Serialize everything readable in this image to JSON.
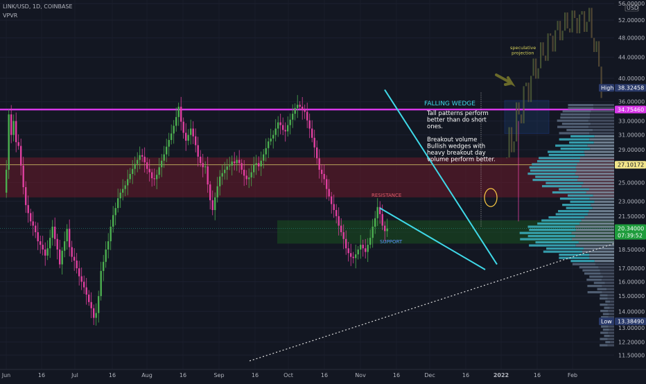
{
  "header": {
    "symbol_line": "LINK/USD, 1D, COINBASE",
    "indicator": "VPVR",
    "currency": "USD"
  },
  "annotations": {
    "pattern_title": "FALLING WEDGE",
    "note_lines": [
      "Tall patterns perform",
      "better than do short",
      "ones.",
      "",
      "Breakout volume",
      "Bullish wedges  with",
      "heavy breakout day",
      "volume perform better."
    ],
    "resistance": "RESISTANCE",
    "support": "SUPPORT",
    "projection_lines": [
      "speculative",
      "projection"
    ]
  },
  "price_tags": {
    "high_label": "High",
    "high_value": "38.32458",
    "magenta_level": "34.75460",
    "yellow_level": "27.10172",
    "current": "20.34000",
    "countdown": "07:39:52",
    "low_label": "Low",
    "low_value": "13.38490"
  },
  "colors": {
    "background": "#131722",
    "bull": "#4caf50",
    "bear": "#e040a0",
    "magenta_line": "#d838e8",
    "wedge": "#3fd9e8",
    "resistance_zone": "#6b1a2a",
    "support_zone": "#1b5e20",
    "volume_profile": "#4dd0e1"
  },
  "chart_data": {
    "type": "candlestick",
    "title": "LINK/USD, 1D, COINBASE",
    "y_scale": "log",
    "ylim": [
      10.9,
      56.0
    ],
    "y_ticks": [
      "56.00000",
      "52.00000",
      "48.00000",
      "44.00000",
      "40.00000",
      "36.00000",
      "33.00000",
      "31.00000",
      "29.00000",
      "27.00000",
      "25.00000",
      "23.00000",
      "21.50000",
      "20.00000",
      "18.50000",
      "17.00000",
      "16.00000",
      "15.00000",
      "14.00000",
      "13.00000",
      "12.20000",
      "11.50000"
    ],
    "x_ticks": [
      "Jun",
      "16",
      "Jul",
      "16",
      "Aug",
      "16",
      "Sep",
      "16",
      "Oct",
      "16",
      "Nov",
      "16",
      "Dec",
      "16",
      "2022",
      "16",
      "Feb"
    ],
    "levels": {
      "magenta": 34.7546,
      "high": 38.32458,
      "yellow": 27.10172,
      "current": 20.34,
      "low": 13.3849
    },
    "zones": {
      "resistance": [
        23.4,
        28.0
      ],
      "support": [
        19.0,
        21.1
      ]
    },
    "wedge": {
      "upper": [
        {
          "x": "Nov 8",
          "y": 38.0
        },
        {
          "x": "Dec 28",
          "y": 17.3
        }
      ],
      "lower": [
        {
          "x": "Nov 1",
          "y": 22.3
        },
        {
          "x": "Dec 26",
          "y": 16.9
        }
      ]
    },
    "trend_support": [
      {
        "x": "Sep 30",
        "y": 11.2
      },
      {
        "x": "Feb 5",
        "y": 19.0
      }
    ],
    "closes": [
      23.9,
      26.5,
      34.0,
      31.0,
      33.0,
      30.0,
      29.5,
      27.0,
      24.5,
      22.6,
      21.8,
      21.0,
      20.6,
      20.0,
      19.2,
      18.9,
      18.5,
      18.0,
      18.6,
      19.5,
      20.5,
      19.4,
      18.5,
      17.3,
      18.4,
      19.2,
      20.3,
      18.7,
      17.9,
      17.6,
      17.0,
      16.4,
      16.0,
      15.6,
      15.1,
      14.6,
      14.2,
      13.6,
      13.9,
      15.0,
      16.8,
      17.5,
      18.5,
      19.2,
      20.5,
      21.6,
      22.3,
      23.3,
      23.9,
      24.3,
      24.7,
      25.4,
      26.0,
      26.6,
      27.2,
      27.7,
      28.3,
      28.1,
      27.4,
      26.6,
      26.2,
      25.5,
      25.4,
      25.9,
      26.8,
      27.6,
      28.4,
      29.4,
      30.3,
      31.2,
      32.3,
      33.6,
      35.2,
      32.9,
      31.3,
      30.2,
      31.0,
      31.9,
      30.8,
      29.6,
      28.1,
      27.3,
      26.8,
      26.9,
      24.8,
      23.1,
      22.1,
      23.4,
      24.6,
      25.7,
      26.1,
      26.5,
      26.9,
      27.0,
      27.5,
      27.3,
      27.7,
      27.3,
      26.5,
      25.8,
      25.4,
      25.6,
      26.2,
      27.1,
      27.3,
      26.9,
      27.6,
      28.4,
      29.2,
      30.1,
      30.5,
      31.0,
      31.9,
      32.8,
      32.4,
      31.7,
      31.5,
      32.4,
      33.2,
      34.1,
      35.0,
      35.5,
      35.2,
      34.7,
      34.4,
      33.1,
      31.9,
      30.6,
      29.3,
      27.9,
      26.5,
      26.0,
      25.4,
      24.3,
      23.5,
      22.7,
      22.1,
      21.5,
      20.6,
      20.0,
      19.4,
      18.6,
      18.2,
      17.9,
      17.8,
      18.1,
      18.5,
      18.9,
      18.6,
      18.3,
      18.9,
      19.5,
      20.5,
      21.3,
      22.4,
      21.7,
      20.6,
      20.1,
      20.34
    ]
  }
}
